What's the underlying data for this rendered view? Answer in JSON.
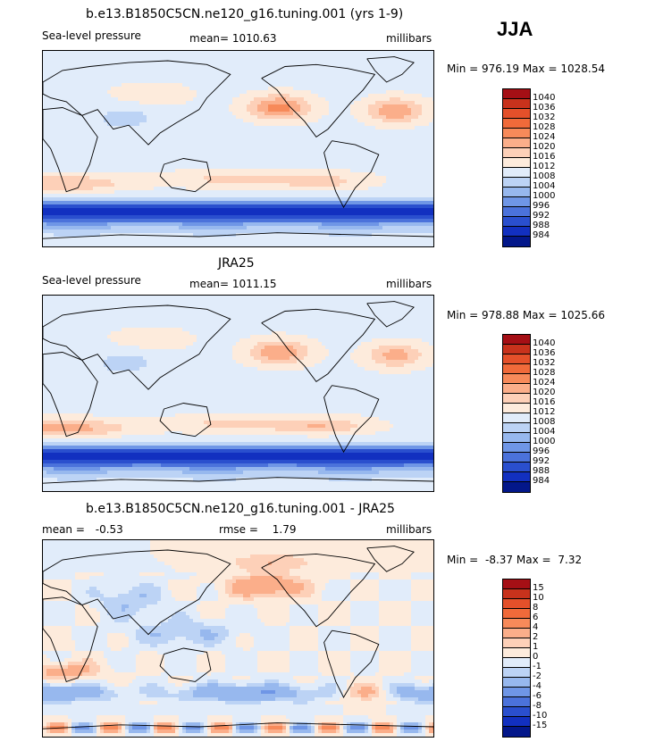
{
  "season": "JJA",
  "chart_data": [
    {
      "type": "heatmap",
      "title": "b.e13.B1850C5CN.ne120_g16.tuning.001 (yrs 1-9)",
      "variable": "Sea-level pressure",
      "mean_label": "mean=",
      "mean": "1010.63",
      "units": "millibars",
      "min_label": "Min =",
      "min": "976.19",
      "max_label": "Max =",
      "max": "1028.54",
      "levels": [
        "1040",
        "1036",
        "1032",
        "1028",
        "1024",
        "1020",
        "1016",
        "1012",
        "1008",
        "1004",
        "1000",
        "996",
        "992",
        "988",
        "984"
      ],
      "colors": [
        "#a50f15",
        "#c8321c",
        "#e4502a",
        "#f06a3a",
        "#f78a5a",
        "#fbae8a",
        "#fdd0b8",
        "#fdebdc",
        "#e1ecfa",
        "#bcd3f5",
        "#97b8ee",
        "#6f96e6",
        "#4b72db",
        "#2a4fce",
        "#1230c0",
        "#03178a"
      ],
      "field": {
        "high_pacific": 1026,
        "high_atlantic": 1024,
        "high_south": 1020,
        "southern_ocean_low": 985
      }
    },
    {
      "type": "heatmap",
      "title": "JRA25",
      "variable": "Sea-level pressure",
      "mean_label": "mean=",
      "mean": "1011.15",
      "units": "millibars",
      "min_label": "Min =",
      "min": "978.88",
      "max_label": "Max =",
      "max": "1025.66",
      "levels": [
        "1040",
        "1036",
        "1032",
        "1028",
        "1024",
        "1020",
        "1016",
        "1012",
        "1008",
        "1004",
        "1000",
        "996",
        "992",
        "988",
        "984"
      ],
      "colors": [
        "#a50f15",
        "#c8321c",
        "#e4502a",
        "#f06a3a",
        "#f78a5a",
        "#fbae8a",
        "#fdd0b8",
        "#fdebdc",
        "#e1ecfa",
        "#bcd3f5",
        "#97b8ee",
        "#6f96e6",
        "#4b72db",
        "#2a4fce",
        "#1230c0",
        "#03178a"
      ],
      "field": {
        "high_pacific": 1024,
        "high_atlantic": 1022,
        "high_south": 1022,
        "southern_ocean_low": 986
      }
    },
    {
      "type": "heatmap",
      "title": "b.e13.B1850C5CN.ne120_g16.tuning.001 - JRA25",
      "mean_label": "mean =",
      "mean": "-0.53",
      "rmse_label": "rmse =",
      "rmse": "1.79",
      "units": "millibars",
      "min_label": "Min =",
      "min": "-8.37",
      "max_label": "Max =",
      "max": "7.32",
      "levels": [
        "15",
        "10",
        "8",
        "6",
        "4",
        "2",
        "1",
        "0",
        "-1",
        "-2",
        "-4",
        "-6",
        "-8",
        "-10",
        "-15"
      ],
      "colors": [
        "#a50f15",
        "#c8321c",
        "#e4502a",
        "#f06a3a",
        "#f78a5a",
        "#fbae8a",
        "#fdd0b8",
        "#fdebdc",
        "#e1ecfa",
        "#bcd3f5",
        "#97b8ee",
        "#6f96e6",
        "#4b72db",
        "#2a4fce",
        "#1230c0",
        "#03178a"
      ],
      "field": {
        "north_pacific": 4,
        "south_pacific": 3,
        "southern_ocean": -4
      }
    }
  ]
}
